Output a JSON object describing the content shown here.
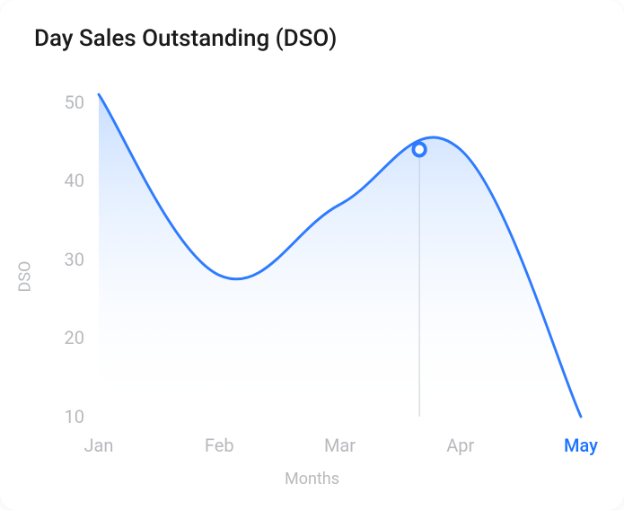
{
  "title": "Day Sales Outstanding (DSO)",
  "chart": {
    "type": "area",
    "y_label": "DSO",
    "x_label": "Months",
    "ylim": [
      10,
      50
    ],
    "ytick_step": 10,
    "y_ticks": [
      50,
      40,
      30,
      20,
      10
    ],
    "x_categories": [
      "Jan",
      "Feb",
      "Mar",
      "Apr",
      "May"
    ],
    "highlighted_category": "May",
    "data_points": [
      {
        "month": "Jan",
        "value": 51
      },
      {
        "month": "Feb",
        "value": 28
      },
      {
        "month": "Mar",
        "value": 37
      },
      {
        "month": "Apr",
        "value": 44
      },
      {
        "month": "May",
        "value": 10
      }
    ],
    "marker": {
      "between_index": 2,
      "value": 44
    },
    "line_color": "#2f7bff",
    "line_width": 3,
    "fill_color_top": "#9cc4ff",
    "fill_color_bottom": "#ffffff",
    "fill_opacity_top": 0.55,
    "marker_fill": "#ffffff",
    "marker_stroke": "#2f7bff",
    "marker_radius": 7,
    "marker_stroke_width": 4,
    "guideline_color": "#c6c8cb",
    "guideline_width": 1,
    "axis_text_color": "#b7b9bc",
    "title_color": "#1a1a1a",
    "title_fontsize": 26,
    "tick_fontsize": 20,
    "label_fontsize": 18,
    "background_color": "#ffffff"
  }
}
